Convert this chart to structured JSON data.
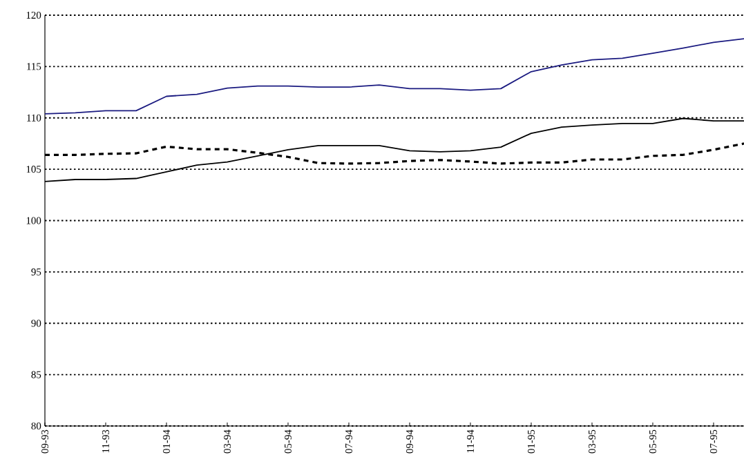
{
  "chart_data": {
    "type": "line",
    "categories": [
      "09-93",
      null,
      "11-93",
      null,
      "01-94",
      null,
      "03-94",
      null,
      "05-94",
      null,
      "07-94",
      null,
      "09-94",
      null,
      "11-94",
      null,
      "01-95",
      null,
      "03-95",
      null,
      "05-95",
      null,
      "07-95",
      null
    ],
    "series": [
      {
        "color": "#1a1a80",
        "line_style": "solid",
        "values": [
          110.4,
          110.5,
          110.7,
          110.7,
          112.1,
          112.3,
          112.9,
          113.1,
          113.1,
          113.0,
          113.0,
          113.2,
          112.85,
          112.85,
          112.7,
          112.85,
          114.5,
          115.15,
          115.65,
          115.8,
          116.3,
          116.8,
          117.35,
          117.7
        ]
      },
      {
        "color": "#000000",
        "line_style": "solid",
        "values": [
          103.8,
          104.0,
          104.0,
          104.1,
          104.75,
          105.4,
          105.7,
          106.3,
          106.9,
          107.3,
          107.3,
          107.3,
          106.8,
          106.7,
          106.8,
          107.15,
          108.5,
          109.1,
          109.3,
          109.45,
          109.45,
          109.95,
          109.7,
          109.7
        ]
      },
      {
        "color": "#000000",
        "line_style": "dashed",
        "values": [
          106.4,
          106.4,
          106.5,
          106.55,
          107.2,
          106.95,
          106.95,
          106.6,
          106.2,
          105.6,
          105.55,
          105.6,
          105.8,
          105.9,
          105.75,
          105.55,
          105.65,
          105.65,
          105.95,
          105.95,
          106.3,
          106.4,
          106.9,
          107.5
        ]
      }
    ],
    "ylim": [
      80,
      120
    ],
    "yticks": [
      80,
      85,
      90,
      95,
      100,
      105,
      110,
      115,
      120
    ],
    "grid": "y"
  }
}
